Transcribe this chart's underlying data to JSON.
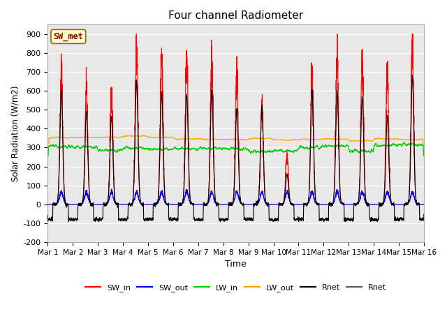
{
  "title": "Four channel Radiometer",
  "xlabel": "Time",
  "ylabel": "Solar Radiation (W/m2)",
  "ylim": [
    -200,
    950
  ],
  "yticks": [
    -200,
    -100,
    0,
    100,
    200,
    300,
    400,
    500,
    600,
    700,
    800,
    900
  ],
  "x_labels": [
    "Mar 1",
    "Mar 2",
    "Mar 3",
    "Mar 4",
    "Mar 5",
    "Mar 6",
    "Mar 7",
    "Mar 8",
    "Mar 9",
    "Mar 10",
    "Mar 11",
    "Mar 12",
    "Mar 13",
    "Mar 14",
    "Mar 15",
    "Mar 16"
  ],
  "n_days": 15,
  "annotation_text": "SW_met",
  "annotation_color": "#8B0000",
  "annotation_bg": "#FFFFCC",
  "annotation_edge": "#8B6914",
  "legend_entries": [
    "SW_in",
    "SW_out",
    "LW_in",
    "LW_out",
    "Rnet",
    "Rnet"
  ],
  "legend_colors": [
    "#FF0000",
    "#0000FF",
    "#00CC00",
    "#FFA500",
    "#000000",
    "#555555"
  ],
  "SW_in_color": "#FF0000",
  "SW_out_color": "#0000FF",
  "LW_in_color": "#00CC00",
  "LW_out_color": "#FFA500",
  "Rnet_color": "#000000",
  "plot_bg": "#E8E8E8",
  "day_peaks_sw_in": [
    700,
    620,
    580,
    820,
    780,
    770,
    760,
    700,
    520,
    260,
    700,
    780,
    760,
    700,
    850
  ],
  "day_peaks_rnet": [
    600,
    490,
    470,
    650,
    590,
    590,
    600,
    510,
    520,
    160,
    600,
    600,
    570,
    465,
    680
  ]
}
